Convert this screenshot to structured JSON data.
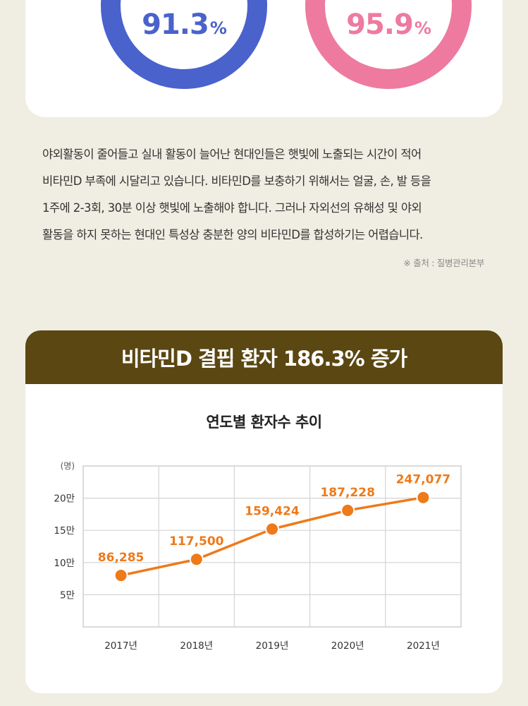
{
  "stats": {
    "left_value": "91.3",
    "right_value": "95.9",
    "unit": "%",
    "left_color": "#4a62cc",
    "right_color": "#ee7aa0"
  },
  "description": {
    "lines": [
      "야외활동이 줄어들고 실내 활동이 늘어난 현대인들은 햇빛에 노출되는 시간이 적어",
      "비타민D 부족에 시달리고 있습니다. 비타민D를 보충하기 위해서는 얼굴, 손, 발 등을",
      "1주에 2-3회, 30분 이상 햇빛에 노출해야 합니다. 그러나 자외선의 유해성 및 야외",
      "활동을 하지 못하는 현대인 특성상 충분한 양의 비타민D를 합성하기는 어렵습니다."
    ],
    "source": "※ 출처 : 질병관리본부"
  },
  "section": {
    "header": "비타민D 결핍 환자 186.3% 증가",
    "header_color": "#5b4712"
  },
  "chart_data": {
    "type": "line",
    "title": "연도별 환자수 추이",
    "ylabel": "(명)",
    "categories": [
      "2017년",
      "2018년",
      "2019년",
      "2020년",
      "2021년"
    ],
    "values": [
      86285,
      117500,
      159424,
      187228,
      247077
    ],
    "value_labels": [
      "86,285",
      "117,500",
      "159,424",
      "187,228",
      "247,077"
    ],
    "y_ticks": [
      {
        "value": 5,
        "label": "5만"
      },
      {
        "value": 10,
        "label": "10만"
      },
      {
        "value": 15,
        "label": "15만"
      },
      {
        "value": 20,
        "label": "20만"
      }
    ],
    "ylim": [
      0,
      25
    ],
    "point_y_levels": [
      8,
      10.5,
      15.2,
      18.1,
      20.1
    ],
    "grid": true,
    "line_color": "#ee7a1a"
  }
}
